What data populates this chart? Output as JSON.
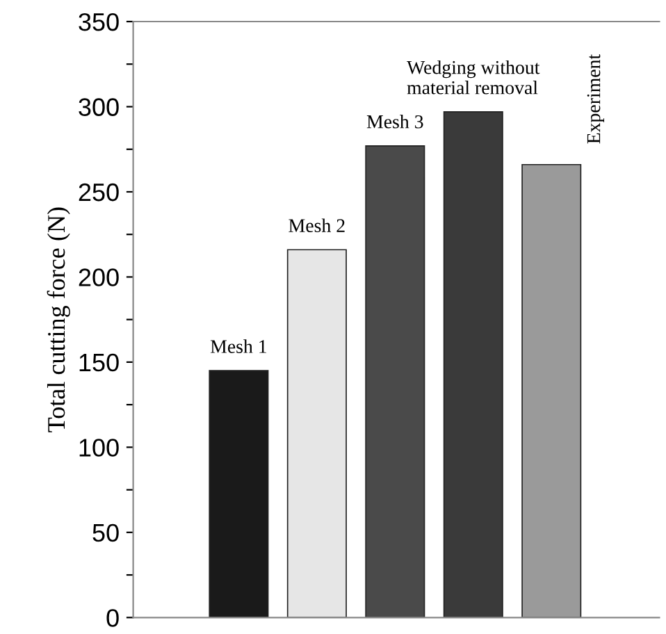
{
  "chart_data": {
    "type": "bar",
    "ylabel": "Total cutting force (N)",
    "categories": [
      null,
      null,
      null,
      null,
      null
    ],
    "values": [
      145,
      216,
      277,
      297,
      266
    ],
    "colors": [
      "#1a1a1a",
      "#e6e6e6",
      "#4a4a4a",
      "#3a3a3a",
      "#9a9a9a"
    ],
    "annotations": [
      "Mesh 1",
      "Mesh 2",
      "Mesh 3",
      "Wedging without\nmaterial removal",
      "Experiment"
    ],
    "ylim": [
      0,
      350
    ],
    "yticks": [
      0,
      {
        "value": 25,
        "label": null
      },
      50,
      {
        "value": 75,
        "label": null
      },
      100,
      {
        "value": 125,
        "label": null
      },
      150,
      {
        "value": 175,
        "label": null
      },
      200,
      {
        "value": 225,
        "label": null
      },
      250,
      {
        "value": 275,
        "label": null
      },
      300,
      {
        "value": 325,
        "label": null
      },
      350
    ],
    "grid": false,
    "legend": false
  }
}
